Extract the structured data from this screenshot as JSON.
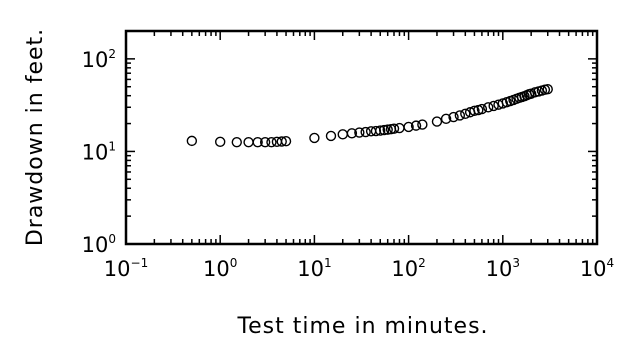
{
  "chart_data": {
    "type": "scatter",
    "title": "",
    "xlabel": "Test time in minutes.",
    "ylabel": "Drawdown in feet.",
    "xscale": "log",
    "yscale": "log",
    "xlim": [
      0.1,
      10000
    ],
    "ylim": [
      1,
      200
    ],
    "grid": false,
    "legend": "none",
    "marker": "open-circle",
    "color": "#000000",
    "x_ticks": [
      {
        "base": "10",
        "exp": "−1",
        "value": 0.1
      },
      {
        "base": "10",
        "exp": "0",
        "value": 1
      },
      {
        "base": "10",
        "exp": "1",
        "value": 10
      },
      {
        "base": "10",
        "exp": "2",
        "value": 100
      },
      {
        "base": "10",
        "exp": "3",
        "value": 1000
      },
      {
        "base": "10",
        "exp": "4",
        "value": 10000
      }
    ],
    "y_ticks": [
      {
        "base": "10",
        "exp": "0",
        "value": 1
      },
      {
        "base": "10",
        "exp": "1",
        "value": 10
      },
      {
        "base": "10",
        "exp": "2",
        "value": 100
      }
    ],
    "series": [
      {
        "points": [
          [
            0.5,
            13.0
          ],
          [
            1.0,
            12.7
          ],
          [
            1.5,
            12.6
          ],
          [
            2.0,
            12.6
          ],
          [
            2.5,
            12.6
          ],
          [
            3.0,
            12.6
          ],
          [
            3.5,
            12.6
          ],
          [
            4.0,
            12.7
          ],
          [
            4.5,
            12.8
          ],
          [
            5.0,
            12.9
          ],
          [
            10,
            14.0
          ],
          [
            15,
            14.7
          ],
          [
            20,
            15.3
          ],
          [
            25,
            15.7
          ],
          [
            30,
            16.0
          ],
          [
            35,
            16.2
          ],
          [
            40,
            16.5
          ],
          [
            45,
            16.6
          ],
          [
            50,
            16.8
          ],
          [
            55,
            17.0
          ],
          [
            60,
            17.2
          ],
          [
            65,
            17.4
          ],
          [
            70,
            17.6
          ],
          [
            80,
            17.9
          ],
          [
            100,
            18.4
          ],
          [
            120,
            19.0
          ],
          [
            140,
            19.5
          ],
          [
            200,
            21.0
          ],
          [
            250,
            22.5
          ],
          [
            300,
            23.5
          ],
          [
            350,
            24.5
          ],
          [
            400,
            25.5
          ],
          [
            450,
            26.5
          ],
          [
            500,
            27.5
          ],
          [
            550,
            28.0
          ],
          [
            600,
            28.7
          ],
          [
            700,
            30.0
          ],
          [
            800,
            31.0
          ],
          [
            900,
            32.0
          ],
          [
            1000,
            33.0
          ],
          [
            1100,
            34.0
          ],
          [
            1200,
            35.0
          ],
          [
            1300,
            36.0
          ],
          [
            1400,
            37.0
          ],
          [
            1500,
            38.0
          ],
          [
            1600,
            38.8
          ],
          [
            1700,
            39.5
          ],
          [
            1800,
            40.5
          ],
          [
            1900,
            41.5
          ],
          [
            2000,
            42.0
          ],
          [
            2200,
            43.5
          ],
          [
            2400,
            44.5
          ],
          [
            2600,
            45.5
          ],
          [
            2800,
            46.5
          ],
          [
            3000,
            47.0
          ]
        ]
      }
    ]
  }
}
